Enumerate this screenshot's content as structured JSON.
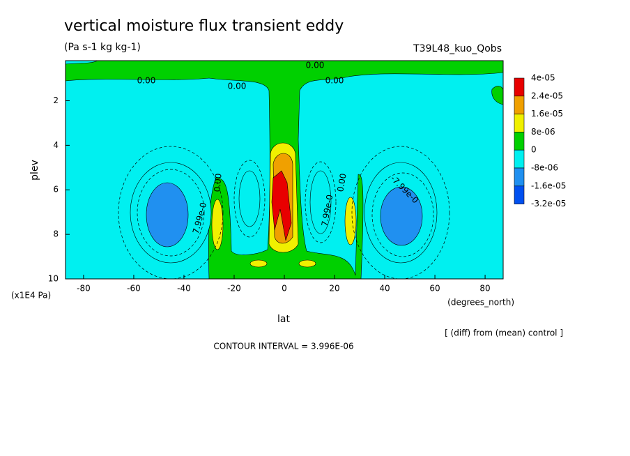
{
  "chart_data": {
    "type": "contour",
    "title": "vertical moisture flux transient eddy",
    "subtitle": "(Pa s-1 kg kg-1)",
    "run_label": "T39L48_kuo_Qobs",
    "x_label": "lat",
    "x_units": "(degrees_north)",
    "y_label": "plev",
    "y_units": "(x1E4 Pa)",
    "note": "[ (diff) from (mean) control ]",
    "contour_interval": "CONTOUR INTERVAL = 3.996E-06",
    "xlim": [
      -87.2,
      87.2
    ],
    "xticks": [
      -80,
      -60,
      -40,
      -20,
      0,
      20,
      40,
      60,
      80
    ],
    "ylim": [
      10,
      0.2
    ],
    "yticks": [
      2,
      4,
      6,
      8,
      10
    ],
    "levels": [
      {
        "value": 4e-05,
        "label": "4e-05"
      },
      {
        "value": 2.4e-05,
        "label": "2.4e-05"
      },
      {
        "value": 1.6e-05,
        "label": "1.6e-05"
      },
      {
        "value": 8e-06,
        "label": "8e-06"
      },
      0,
      {
        "value": -8e-06,
        "label": "-8e-06"
      },
      {
        "value": -1.6e-05,
        "label": "-1.6e-05"
      },
      {
        "value": -3.2e-05,
        "label": "-3.2e-05"
      }
    ],
    "colors": [
      "#e80000",
      "#f0a000",
      "#f0f000",
      "#00d000",
      "#00f0f0",
      "#2090f0",
      "#0050f0"
    ],
    "contour_labels": [
      "0.00",
      "0.00",
      "0.00",
      "0.00",
      "7.99e-0",
      "0.00",
      "7.99e-0",
      "0.00",
      "-7.99e-0"
    ]
  }
}
